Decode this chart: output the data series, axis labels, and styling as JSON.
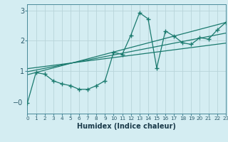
{
  "bg_color": "#d4edf2",
  "line_color": "#1a7a6e",
  "grid_color": "#b8d4da",
  "xlabel": "Humidex (Indice chaleur)",
  "xlim": [
    0,
    23
  ],
  "ylim": [
    -0.4,
    3.2
  ],
  "yticks": [
    1.0,
    2.0,
    3.0
  ],
  "ytick_labels": [
    "1",
    "2",
    "3"
  ],
  "neg0_y": -0.05,
  "xticks": [
    0,
    1,
    2,
    3,
    4,
    5,
    6,
    7,
    8,
    9,
    10,
    11,
    12,
    13,
    14,
    15,
    16,
    17,
    18,
    19,
    20,
    21,
    22,
    23
  ],
  "main_x": [
    0,
    1,
    2,
    3,
    4,
    5,
    6,
    7,
    8,
    9,
    10,
    11,
    12,
    13,
    14,
    15,
    16,
    17,
    18,
    19,
    20,
    21,
    22,
    23
  ],
  "main_y": [
    -0.05,
    0.95,
    0.9,
    0.68,
    0.58,
    0.52,
    0.4,
    0.4,
    0.52,
    0.68,
    1.62,
    1.55,
    2.18,
    2.92,
    2.72,
    1.1,
    2.32,
    2.15,
    1.93,
    1.88,
    2.1,
    2.05,
    2.35,
    2.6
  ],
  "reg_lines": [
    [
      0,
      0.88,
      23,
      2.6
    ],
    [
      0,
      0.98,
      23,
      2.25
    ],
    [
      0,
      1.08,
      23,
      1.92
    ]
  ]
}
